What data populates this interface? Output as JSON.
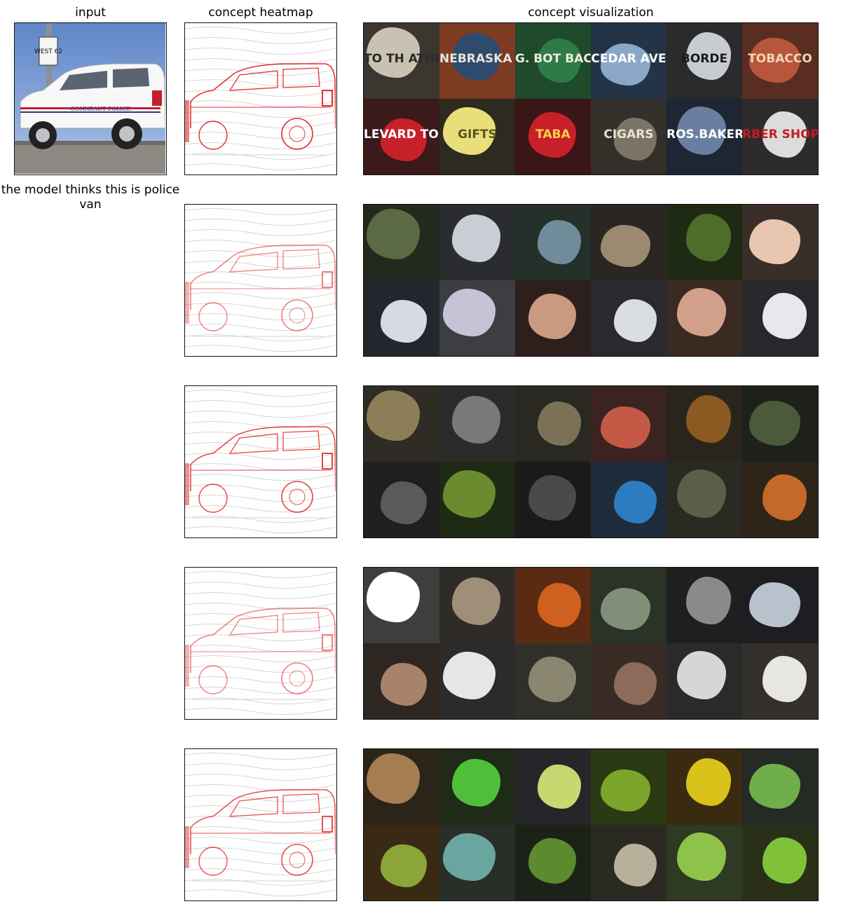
{
  "headers": {
    "input": "input",
    "heatmap": "concept heatmap",
    "visualization": "concept visualization"
  },
  "prediction": "the model thinks this is police van",
  "input_image": {
    "sign": "WEST 62",
    "door_text": "CONNEAUT  POLICE"
  },
  "rows": [
    {
      "tiles": [
        {
          "bg": "#3b3630",
          "blob": "#c9c2b3",
          "text": "TO TH  ATHOLIC C",
          "tc": "#2a2a2a"
        },
        {
          "bg": "#7d3b22",
          "blob": "#2e4b6e",
          "text": "NEBRASKA BOOKSTORE",
          "tc": "#e9e4d8"
        },
        {
          "bg": "#1f4a2c",
          "blob": "#2e7a48",
          "text": "G. BOT BACCO MERC",
          "tc": "#f0ead6"
        },
        {
          "bg": "#223445",
          "blob": "#8aa7c8",
          "text": "CEDAR AVE",
          "tc": "#ffffff"
        },
        {
          "bg": "#2b2b2d",
          "blob": "#c8ccd2",
          "text": "BORDE",
          "tc": "#1b1b1b"
        },
        {
          "bg": "#5a2d22",
          "blob": "#b8563c",
          "text": "TOBACCO",
          "tc": "#f2d6b4"
        },
        {
          "bg": "#3a1a1a",
          "blob": "#c8202a",
          "text": "LEVARD TOP",
          "tc": "#ffffff"
        },
        {
          "bg": "#2d2a20",
          "blob": "#e9df7a",
          "text": "GIFTS",
          "tc": "#5b5320"
        },
        {
          "bg": "#3b1616",
          "blob": "#c8202a",
          "text": "TABA",
          "tc": "#f6d24a"
        },
        {
          "bg": "#333029",
          "blob": "#7b7466",
          "text": "CIGARS",
          "tc": "#e8e2d2"
        },
        {
          "bg": "#1e2633",
          "blob": "#6a7fa0",
          "text": "ROS.BAKERY",
          "tc": "#ffffff"
        },
        {
          "bg": "#2d2b2c",
          "blob": "#dcdcdc",
          "text": "RBER SHOP",
          "tc": "#c21d24"
        }
      ]
    },
    {
      "tiles": [
        {
          "bg": "#23291c",
          "blob": "#5b6a44",
          "text": "",
          "tc": "#fff"
        },
        {
          "bg": "#2a2c2f",
          "blob": "#c9ced6",
          "text": "",
          "tc": "#fff"
        },
        {
          "bg": "#25302a",
          "blob": "#6f8c9a",
          "text": "",
          "tc": "#fff"
        },
        {
          "bg": "#2a2621",
          "blob": "#9b8a70",
          "text": "",
          "tc": "#fff"
        },
        {
          "bg": "#1f2a14",
          "blob": "#4f6d2a",
          "text": "",
          "tc": "#fff"
        },
        {
          "bg": "#3a2e28",
          "blob": "#e8c6b0",
          "text": "",
          "tc": "#fff"
        },
        {
          "bg": "#22262d",
          "blob": "#d6dbe2",
          "text": "",
          "tc": "#fff"
        },
        {
          "bg": "#3d3d44",
          "blob": "#c6c3d6",
          "text": "",
          "tc": "#fff"
        },
        {
          "bg": "#2d1f1c",
          "blob": "#c99a80",
          "text": "",
          "tc": "#fff"
        },
        {
          "bg": "#2a2a2e",
          "blob": "#d9dde2",
          "text": "",
          "tc": "#fff"
        },
        {
          "bg": "#3a2a22",
          "blob": "#d2a08a",
          "text": "",
          "tc": "#fff"
        },
        {
          "bg": "#26282c",
          "blob": "#e6e8ec",
          "text": "",
          "tc": "#fff"
        }
      ]
    },
    {
      "tiles": [
        {
          "bg": "#2e2c24",
          "blob": "#8c7f58",
          "text": "",
          "tc": "#fff"
        },
        {
          "bg": "#2b2b2b",
          "blob": "#77797a",
          "text": "",
          "tc": "#fff"
        },
        {
          "bg": "#2a2822",
          "blob": "#7a7157",
          "text": "",
          "tc": "#fff"
        },
        {
          "bg": "#3a2320",
          "blob": "#c45a45",
          "text": "",
          "tc": "#fff"
        },
        {
          "bg": "#2a251c",
          "blob": "#8a5a22",
          "text": "",
          "tc": "#fff"
        },
        {
          "bg": "#1e211b",
          "blob": "#4a5a3a",
          "text": "",
          "tc": "#fff"
        },
        {
          "bg": "#1f1f1f",
          "blob": "#5a5a5a",
          "text": "",
          "tc": "#fff"
        },
        {
          "bg": "#1f2a14",
          "blob": "#6a8c2e",
          "text": "",
          "tc": "#fff"
        },
        {
          "bg": "#1a1a1a",
          "blob": "#4a4a4a",
          "text": "",
          "tc": "#fff"
        },
        {
          "bg": "#1e2b3a",
          "blob": "#2e7cc0",
          "text": "",
          "tc": "#fff"
        },
        {
          "bg": "#2a2a22",
          "blob": "#5c5e4a",
          "text": "",
          "tc": "#fff"
        },
        {
          "bg": "#2e2418",
          "blob": "#c4692a",
          "text": "",
          "tc": "#fff"
        }
      ]
    },
    {
      "tiles": [
        {
          "bg": "#3e3e3e",
          "blob": "#ffffff",
          "text": "",
          "tc": "#fff"
        },
        {
          "bg": "#2f2c28",
          "blob": "#a08f78",
          "text": "",
          "tc": "#fff"
        },
        {
          "bg": "#5a2a12",
          "blob": "#d0601e",
          "text": "",
          "tc": "#fff"
        },
        {
          "bg": "#2a3325",
          "blob": "#7f8f78",
          "text": "",
          "tc": "#fff"
        },
        {
          "bg": "#1f1f1f",
          "blob": "#8a8a8a",
          "text": "",
          "tc": "#fff"
        },
        {
          "bg": "#1e1e22",
          "blob": "#b8c2cc",
          "text": "",
          "tc": "#fff"
        },
        {
          "bg": "#2e2620",
          "blob": "#a7826a",
          "text": "",
          "tc": "#fff"
        },
        {
          "bg": "#2b2b2b",
          "blob": "#e6e6e6",
          "text": "",
          "tc": "#fff"
        },
        {
          "bg": "#2f3128",
          "blob": "#8a8670",
          "text": "",
          "tc": "#fff"
        },
        {
          "bg": "#3a2a24",
          "blob": "#8d6a5a",
          "text": "",
          "tc": "#fff"
        },
        {
          "bg": "#2a2a2a",
          "blob": "#d6d6d6",
          "text": "",
          "tc": "#fff"
        },
        {
          "bg": "#34302c",
          "blob": "#e8e6e2",
          "text": "",
          "tc": "#fff"
        }
      ]
    },
    {
      "tiles": [
        {
          "bg": "#2c2418",
          "blob": "#a67c52",
          "text": "",
          "tc": "#fff"
        },
        {
          "bg": "#1f2a18",
          "blob": "#4fbf3a",
          "text": "",
          "tc": "#fff"
        },
        {
          "bg": "#26262a",
          "blob": "#c8d870",
          "text": "",
          "tc": "#fff"
        },
        {
          "bg": "#2a3a12",
          "blob": "#7aa52a",
          "text": "",
          "tc": "#fff"
        },
        {
          "bg": "#3a2a10",
          "blob": "#d8c21a",
          "text": "",
          "tc": "#fff"
        },
        {
          "bg": "#262a24",
          "blob": "#6fae4a",
          "text": "",
          "tc": "#fff"
        },
        {
          "bg": "#3a2a14",
          "blob": "#8aa53a",
          "text": "",
          "tc": "#fff"
        },
        {
          "bg": "#2a2e28",
          "blob": "#6aa6a0",
          "text": "",
          "tc": "#fff"
        },
        {
          "bg": "#1c2218",
          "blob": "#5c8a2e",
          "text": "",
          "tc": "#fff"
        },
        {
          "bg": "#2a2a22",
          "blob": "#b8b09a",
          "text": "",
          "tc": "#fff"
        },
        {
          "bg": "#2e3a22",
          "blob": "#8fc24a",
          "text": "",
          "tc": "#fff"
        },
        {
          "bg": "#2a3018",
          "blob": "#7fc23a",
          "text": "",
          "tc": "#fff"
        }
      ]
    }
  ]
}
